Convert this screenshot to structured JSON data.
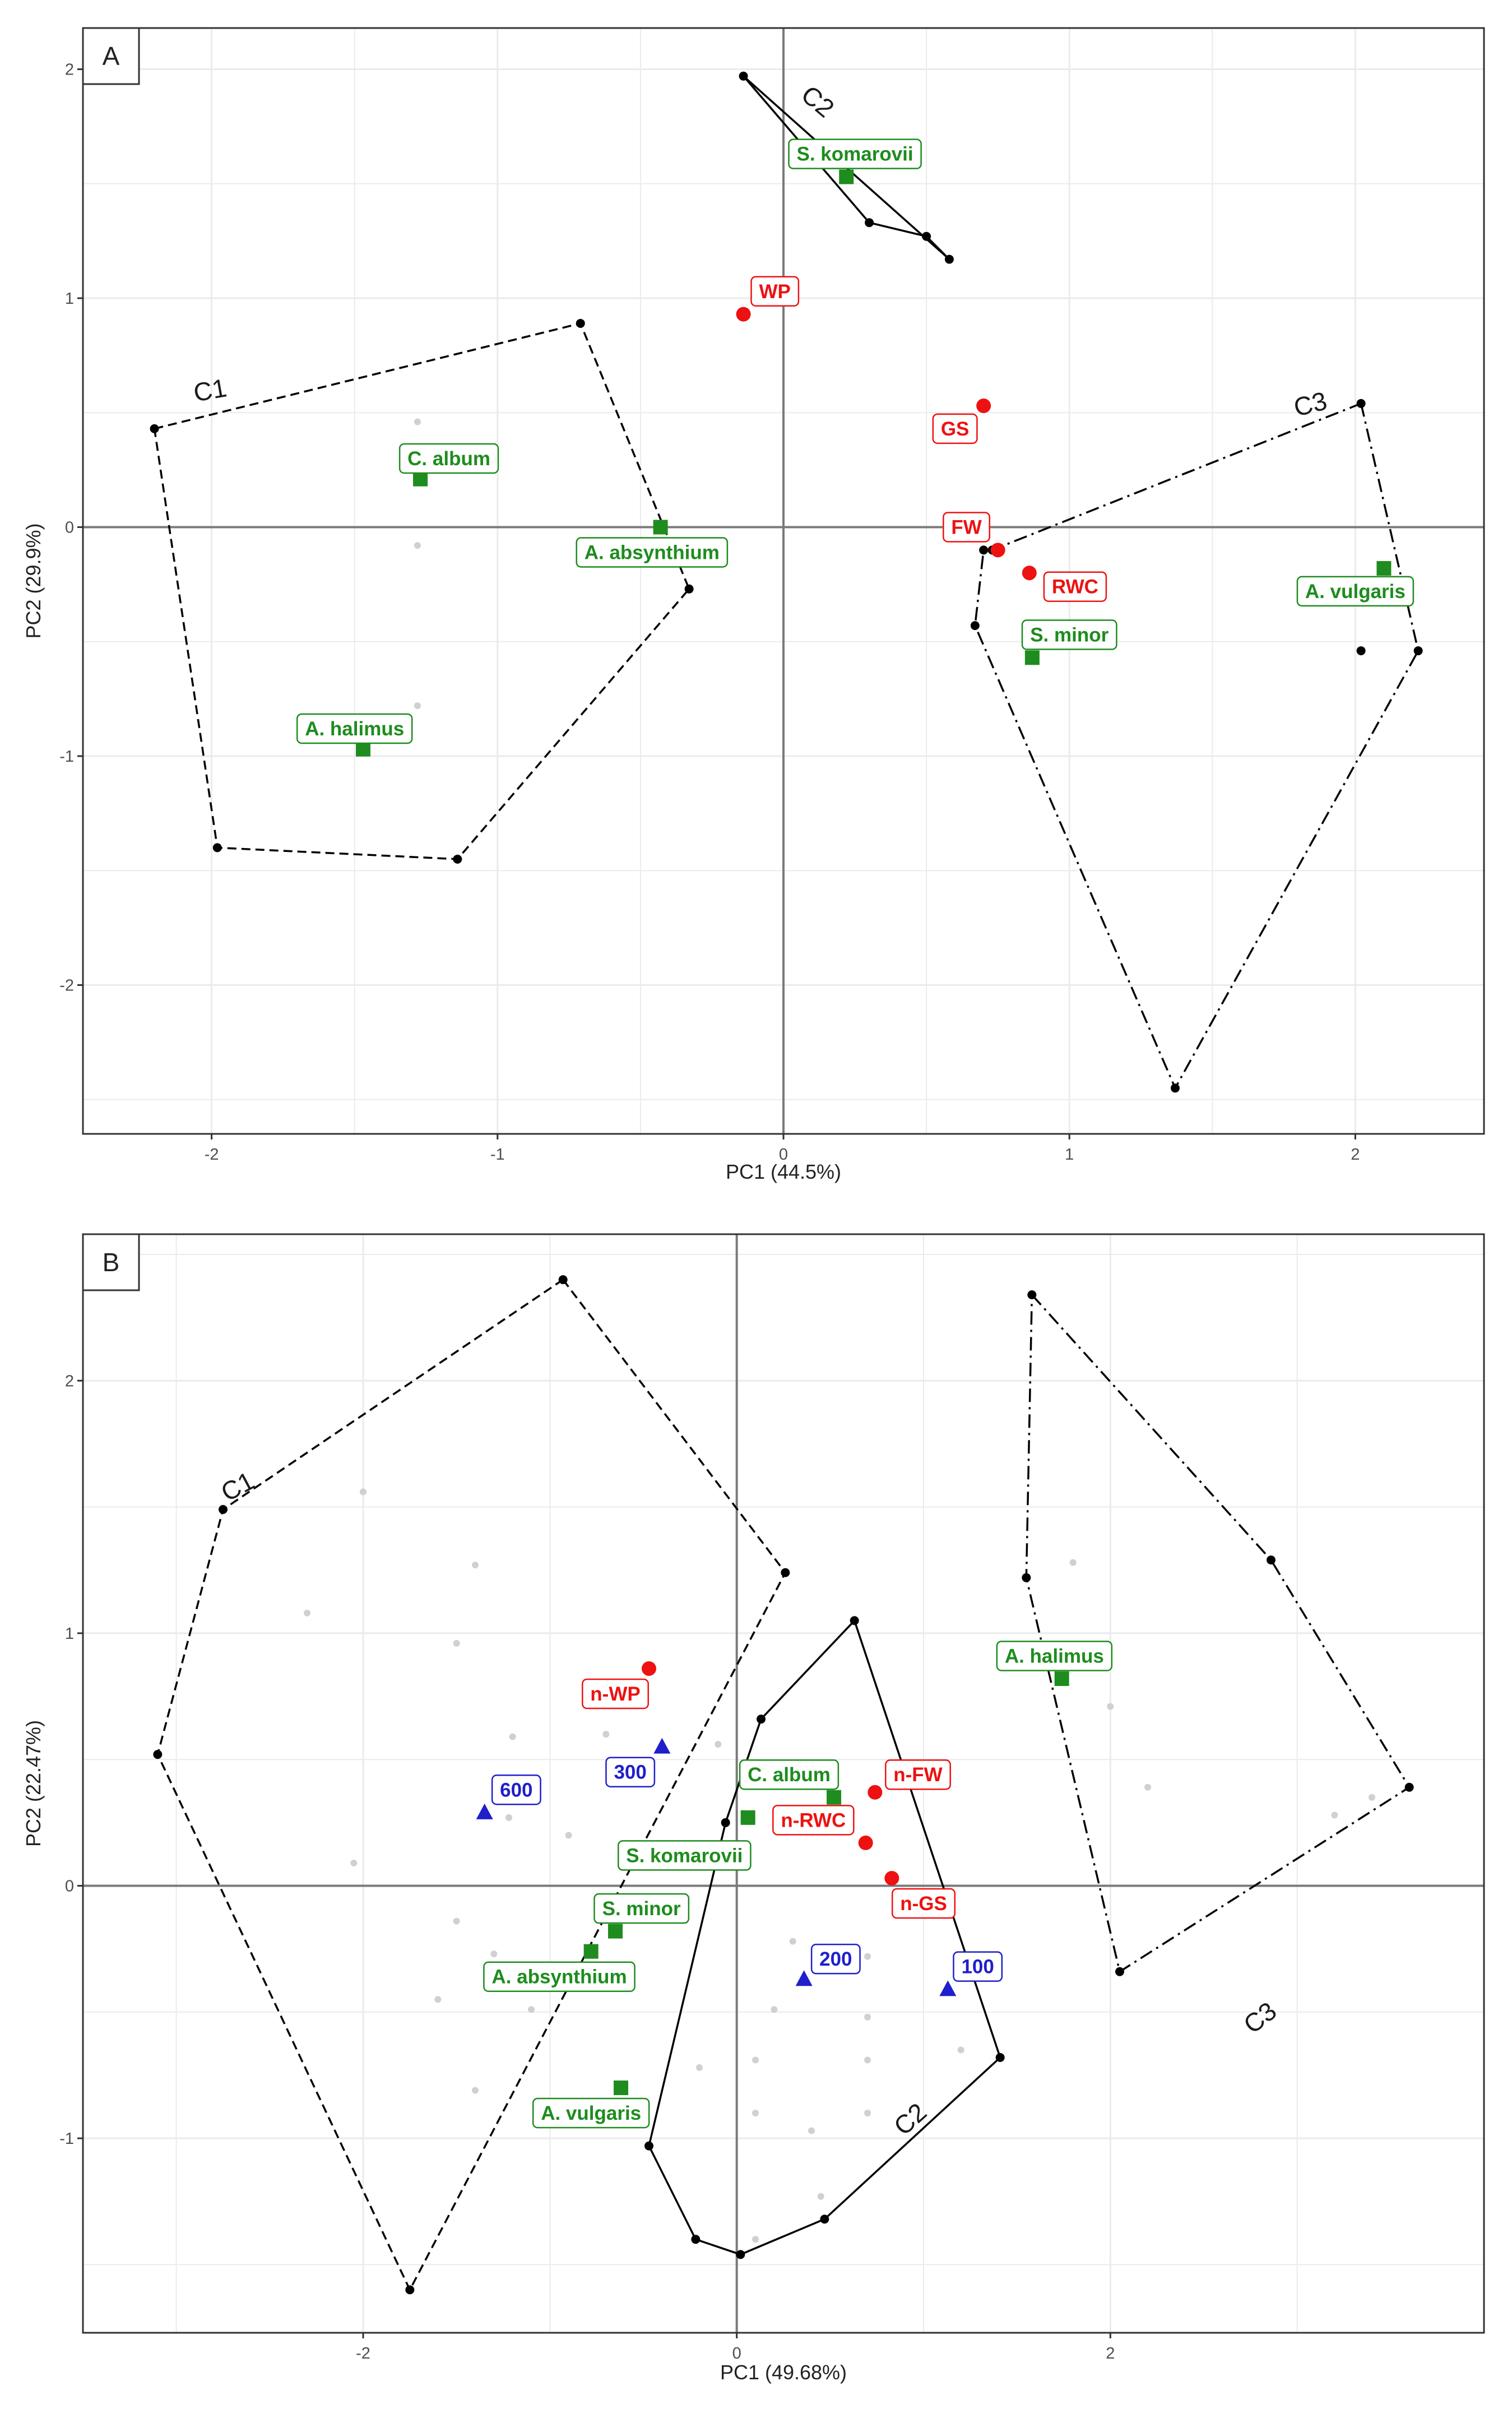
{
  "colors": {
    "species": "#1e8c1e",
    "trait": "#ee1111",
    "density": "#1f1fcc",
    "hull": "#000000",
    "grid": "#ebebeb",
    "axis_zero": "#7a7a7a",
    "faint": "#d0d0d0"
  },
  "chart_data": [
    {
      "type": "scatter",
      "panel": "A",
      "xlabel": "PC1 (44.5%)",
      "ylabel": "PC2 (29.9%)",
      "xlim": [
        -2.45,
        2.45
      ],
      "ylim": [
        -2.65,
        2.18
      ],
      "xticks": [
        -2,
        -1,
        0,
        1,
        2
      ],
      "xtick_labels": [
        "-2",
        "-1",
        "0",
        "1",
        "2"
      ],
      "yticks": [
        -2,
        -1,
        0,
        1,
        2
      ],
      "ytick_labels": [
        "-2",
        "-1",
        "0",
        "1",
        "2"
      ],
      "clusters": [
        {
          "name": "C1",
          "style": "dashed",
          "label_at": [
            -2.0,
            0.56
          ],
          "label_rotate": -10,
          "points": [
            [
              -2.2,
              0.43
            ],
            [
              -0.71,
              0.89
            ],
            [
              -0.33,
              -0.27
            ],
            [
              -1.14,
              -1.45
            ],
            [
              -1.98,
              -1.4
            ]
          ]
        },
        {
          "name": "C2",
          "style": "solid",
          "label_at": [
            0.1,
            1.83
          ],
          "label_rotate": 40,
          "points": [
            [
              -0.14,
              1.97
            ],
            [
              0.58,
              1.17
            ],
            [
              0.5,
              1.27
            ],
            [
              0.3,
              1.33
            ]
          ]
        },
        {
          "name": "C3",
          "style": "dashdot",
          "label_at": [
            1.85,
            0.5
          ],
          "label_rotate": -14,
          "points": [
            [
              2.02,
              0.54
            ],
            [
              2.22,
              -0.54
            ],
            [
              1.37,
              -2.45
            ],
            [
              0.67,
              -0.43
            ],
            [
              0.7,
              -0.1
            ],
            [
              0.73,
              -0.1
            ]
          ]
        }
      ],
      "extra_points": [
        [
          2.02,
          -0.54
        ]
      ],
      "faint_points": [
        [
          -1.28,
          0.46
        ],
        [
          -1.28,
          -0.08
        ],
        [
          -1.28,
          -0.78
        ]
      ],
      "species": [
        {
          "name": "S. komarovii",
          "x": 0.22,
          "y": 1.53,
          "label_at": [
            0.25,
            1.63
          ]
        },
        {
          "name": "C. album",
          "x": -1.27,
          "y": 0.21,
          "label_at": [
            -1.17,
            0.3
          ]
        },
        {
          "name": "A. absynthium",
          "x": -0.43,
          "y": 0.0,
          "label_at": [
            -0.46,
            -0.11
          ]
        },
        {
          "name": "A. halimus",
          "x": -1.47,
          "y": -0.97,
          "label_at": [
            -1.5,
            -0.88
          ]
        },
        {
          "name": "S. minor",
          "x": 0.87,
          "y": -0.57,
          "label_at": [
            1.0,
            -0.47
          ]
        },
        {
          "name": "A. vulgaris",
          "x": 2.1,
          "y": -0.18,
          "label_at": [
            2.0,
            -0.28
          ]
        }
      ],
      "traits": [
        {
          "name": "WP",
          "x": -0.14,
          "y": 0.93,
          "label_at": [
            -0.03,
            1.03
          ]
        },
        {
          "name": "GS",
          "x": 0.7,
          "y": 0.53,
          "label_at": [
            0.6,
            0.43
          ]
        },
        {
          "name": "FW",
          "x": 0.75,
          "y": -0.1,
          "label_at": [
            0.64,
            0.0
          ]
        },
        {
          "name": "RWC",
          "x": 0.86,
          "y": -0.2,
          "label_at": [
            1.02,
            -0.26
          ]
        }
      ],
      "densities": []
    },
    {
      "type": "scatter",
      "panel": "B",
      "xlabel": "PC1 (49.68%)",
      "ylabel": "PC2 (22.47%)",
      "xlim": [
        -3.5,
        4.0
      ],
      "ylim": [
        -1.77,
        2.58
      ],
      "xticks": [
        -2,
        0,
        2
      ],
      "xtick_labels": [
        "-2",
        "0",
        "2"
      ],
      "yticks": [
        -1,
        0,
        1,
        2
      ],
      "ytick_labels": [
        "-1",
        "0",
        "1",
        "2"
      ],
      "clusters": [
        {
          "name": "C1",
          "style": "dashed",
          "label_at": [
            -2.65,
            1.55
          ],
          "label_rotate": -28,
          "points": [
            [
              -0.93,
              2.4
            ],
            [
              0.26,
              1.24
            ],
            [
              -1.75,
              -1.6
            ],
            [
              -3.1,
              0.52
            ],
            [
              -2.75,
              1.49
            ]
          ]
        },
        {
          "name": "C2",
          "style": "solid",
          "label_at": [
            0.96,
            -0.95
          ],
          "label_rotate": -42,
          "points": [
            [
              0.63,
              1.05
            ],
            [
              1.41,
              -0.68
            ],
            [
              0.47,
              -1.32
            ],
            [
              0.02,
              -1.46
            ],
            [
              -0.22,
              -1.4
            ],
            [
              -0.47,
              -1.03
            ],
            [
              -0.06,
              0.25
            ],
            [
              0.13,
              0.66
            ]
          ]
        },
        {
          "name": "C3",
          "style": "dashdot",
          "label_at": [
            2.83,
            -0.55
          ],
          "label_rotate": -38,
          "points": [
            [
              1.58,
              2.34
            ],
            [
              2.86,
              1.29
            ],
            [
              3.6,
              0.39
            ],
            [
              2.05,
              -0.34
            ],
            [
              1.55,
              1.22
            ]
          ]
        }
      ],
      "extra_points": [],
      "faint_points": [
        [
          -2.0,
          1.56
        ],
        [
          -2.3,
          1.08
        ],
        [
          -1.4,
          1.27
        ],
        [
          -1.5,
          0.96
        ],
        [
          -1.2,
          0.59
        ],
        [
          -2.05,
          0.09
        ],
        [
          -1.5,
          -0.14
        ],
        [
          -1.3,
          -0.27
        ],
        [
          -1.6,
          -0.45
        ],
        [
          -1.4,
          -0.81
        ],
        [
          -1.1,
          -0.49
        ],
        [
          -0.9,
          0.2
        ],
        [
          -0.7,
          0.6
        ],
        [
          -0.1,
          0.56
        ],
        [
          0.3,
          -0.22
        ],
        [
          0.7,
          -0.28
        ],
        [
          0.2,
          -0.49
        ],
        [
          0.7,
          -0.52
        ],
        [
          0.1,
          -0.69
        ],
        [
          0.7,
          -0.69
        ],
        [
          0.1,
          -0.9
        ],
        [
          0.7,
          -0.9
        ],
        [
          0.4,
          -0.97
        ],
        [
          0.45,
          -1.23
        ],
        [
          0.1,
          -1.4
        ],
        [
          -0.2,
          -0.72
        ],
        [
          1.2,
          -0.65
        ],
        [
          2.0,
          0.71
        ],
        [
          2.2,
          0.39
        ],
        [
          3.2,
          0.28
        ],
        [
          3.4,
          0.35
        ],
        [
          1.8,
          1.28
        ],
        [
          -1.22,
          0.27
        ]
      ],
      "species": [
        {
          "name": "A. halimus",
          "x": 1.74,
          "y": 0.82,
          "label_at": [
            1.7,
            0.91
          ]
        },
        {
          "name": "C. album",
          "x": 0.52,
          "y": 0.35,
          "label_at": [
            0.28,
            0.44
          ]
        },
        {
          "name": "S. komarovii",
          "x": 0.06,
          "y": 0.27,
          "label_at": [
            -0.28,
            0.12
          ]
        },
        {
          "name": "S. minor",
          "x": -0.65,
          "y": -0.18,
          "label_at": [
            -0.51,
            -0.09
          ]
        },
        {
          "name": "A. absynthium",
          "x": -0.78,
          "y": -0.26,
          "label_at": [
            -0.95,
            -0.36
          ]
        },
        {
          "name": "A. vulgaris",
          "x": -0.62,
          "y": -0.8,
          "label_at": [
            -0.78,
            -0.9
          ]
        }
      ],
      "traits": [
        {
          "name": "n-WP",
          "x": -0.47,
          "y": 0.86,
          "label_at": [
            -0.65,
            0.76
          ]
        },
        {
          "name": "n-FW",
          "x": 0.74,
          "y": 0.37,
          "label_at": [
            0.97,
            0.44
          ]
        },
        {
          "name": "n-RWC",
          "x": 0.69,
          "y": 0.17,
          "label_at": [
            0.41,
            0.26
          ]
        },
        {
          "name": "n-GS",
          "x": 0.83,
          "y": 0.03,
          "label_at": [
            1.0,
            -0.07
          ]
        }
      ],
      "densities": [
        {
          "name": "600",
          "x": -1.35,
          "y": 0.29,
          "label_at": [
            -1.18,
            0.38
          ]
        },
        {
          "name": "300",
          "x": -0.4,
          "y": 0.55,
          "label_at": [
            -0.57,
            0.45
          ]
        },
        {
          "name": "200",
          "x": 0.36,
          "y": -0.37,
          "label_at": [
            0.53,
            -0.29
          ]
        },
        {
          "name": "100",
          "x": 1.13,
          "y": -0.41,
          "label_at": [
            1.29,
            -0.32
          ]
        }
      ]
    }
  ]
}
